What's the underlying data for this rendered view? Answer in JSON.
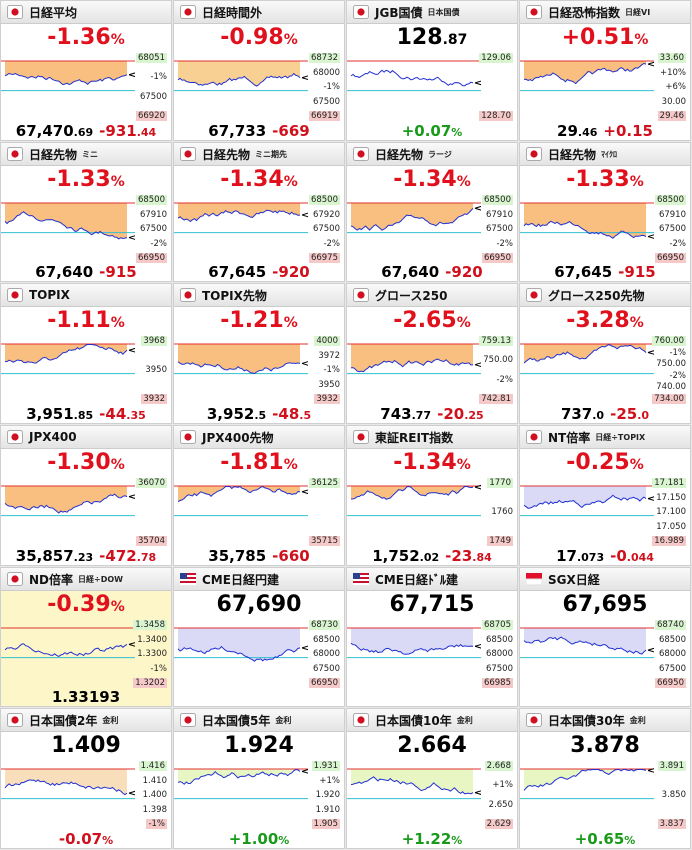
{
  "tiles": [
    {
      "flag": "jp",
      "title": "日経平均",
      "head": [
        "-1.36",
        "%"
      ],
      "head_color": "#e0101c",
      "price": [
        "67,470",
        ".69"
      ],
      "change": [
        "-931",
        ".44"
      ],
      "change_color": "#d0101c",
      "labels": [
        "68051",
        "-1%",
        "67500",
        "66920"
      ],
      "fill": "#f8b46a"
    },
    {
      "flag": "jp",
      "title": "日経時間外",
      "head": [
        "-0.98",
        "%"
      ],
      "head_color": "#e0101c",
      "price": [
        "67,733"
      ],
      "change": [
        "-669"
      ],
      "change_color": "#d0101c",
      "labels": [
        "68732",
        "68000",
        "-1%",
        "67500",
        "66919"
      ],
      "fill": "#f8c880"
    },
    {
      "flag": "jp",
      "title": "JGB国債",
      "sub": "日本国債",
      "head": [
        "128",
        ".87"
      ],
      "head_color": "#000000",
      "change": [
        "+0.07",
        "%"
      ],
      "change_color": "#1a9a1a",
      "labels": [
        "129.06",
        "128.70"
      ],
      "fill": "#ffffff"
    },
    {
      "flag": "jp",
      "title": "日経恐怖指数",
      "sub": "日経VI",
      "head": [
        "+0.51",
        "%"
      ],
      "head_color": "#e0101c",
      "price": [
        "29",
        ".46"
      ],
      "change": [
        "+0.15"
      ],
      "change_color": "#d0101c",
      "labels": [
        "33.60",
        "+10%",
        "+6%",
        "30.00",
        "29.46"
      ],
      "fill": "#f8b46a"
    },
    {
      "flag": "jp",
      "title": "日経先物",
      "sub": "ミニ",
      "head": [
        "-1.33",
        "%"
      ],
      "head_color": "#e0101c",
      "price": [
        "67,640"
      ],
      "change": [
        "-915"
      ],
      "change_color": "#d0101c",
      "labels": [
        "68500",
        "67910",
        "67500",
        "-2%",
        "66950"
      ],
      "fill": "#f8b46a"
    },
    {
      "flag": "jp",
      "title": "日経先物",
      "sub": "ミニ期先",
      "head": [
        "-1.34",
        "%"
      ],
      "head_color": "#e0101c",
      "price": [
        "67,645"
      ],
      "change": [
        "-920"
      ],
      "change_color": "#d0101c",
      "labels": [
        "68500",
        "67920",
        "67500",
        "-2%",
        "66975"
      ],
      "fill": "#f8b46a"
    },
    {
      "flag": "jp",
      "title": "日経先物",
      "sub": "ラージ",
      "head": [
        "-1.34",
        "%"
      ],
      "head_color": "#e0101c",
      "price": [
        "67,640"
      ],
      "change": [
        "-920"
      ],
      "change_color": "#d0101c",
      "labels": [
        "68500",
        "67910",
        "67500",
        "-2%",
        "66950"
      ],
      "fill": "#f8b46a"
    },
    {
      "flag": "jp",
      "title": "日経先物",
      "sub": "ﾏｲｸﾛ",
      "head": [
        "-1.33",
        "%"
      ],
      "head_color": "#e0101c",
      "price": [
        "67,645"
      ],
      "change": [
        "-915"
      ],
      "change_color": "#d0101c",
      "labels": [
        "68500",
        "67910",
        "67500",
        "-2%",
        "66950"
      ],
      "fill": "#f8b46a"
    },
    {
      "flag": "jp",
      "title": "TOPIX",
      "head": [
        "-1.11",
        "%"
      ],
      "head_color": "#e0101c",
      "price": [
        "3,951",
        ".85"
      ],
      "change": [
        "-44",
        ".35"
      ],
      "change_color": "#d0101c",
      "labels": [
        "3968",
        "3950",
        "3932"
      ],
      "fill": "#f8b46a"
    },
    {
      "flag": "jp",
      "title": "TOPIX先物",
      "head": [
        "-1.21",
        "%"
      ],
      "head_color": "#e0101c",
      "price": [
        "3,952",
        ".5"
      ],
      "change": [
        "-48",
        ".5"
      ],
      "change_color": "#d0101c",
      "labels": [
        "4000",
        "3972",
        "-1%",
        "3950",
        "3932"
      ],
      "fill": "#f8b46a"
    },
    {
      "flag": "jp",
      "title": "グロース250",
      "head": [
        "-2.65",
        "%"
      ],
      "head_color": "#e0101c",
      "price": [
        "743",
        ".77"
      ],
      "change": [
        "-20",
        ".25"
      ],
      "change_color": "#d0101c",
      "labels": [
        "759.13",
        "750.00",
        "-2%",
        "742.81"
      ],
      "fill": "#f8b46a"
    },
    {
      "flag": "jp",
      "title": "グロース250先物",
      "head": [
        "-3.28",
        "%"
      ],
      "head_color": "#e0101c",
      "price": [
        "737",
        ".0"
      ],
      "change": [
        "-25",
        ".0"
      ],
      "change_color": "#d0101c",
      "labels": [
        "760.00",
        "-1%",
        "750.00",
        "-2%",
        "740.00",
        "734.00"
      ],
      "fill": "#f8b46a"
    },
    {
      "flag": "jp",
      "title": "JPX400",
      "head": [
        "-1.30",
        "%"
      ],
      "head_color": "#e0101c",
      "price": [
        "35,857",
        ".23"
      ],
      "change": [
        "-472",
        ".78"
      ],
      "change_color": "#d0101c",
      "labels": [
        "36070",
        "35704"
      ],
      "fill": "#f8b46a"
    },
    {
      "flag": "jp",
      "title": "JPX400先物",
      "head": [
        "-1.81",
        "%"
      ],
      "head_color": "#e0101c",
      "price": [
        "35,785"
      ],
      "change": [
        "-660"
      ],
      "change_color": "#d0101c",
      "labels": [
        "36125",
        "35715"
      ],
      "fill": "#f8b46a"
    },
    {
      "flag": "jp",
      "title": "東証REIT指数",
      "head": [
        "-1.34",
        "%"
      ],
      "head_color": "#e0101c",
      "price": [
        "1,752",
        ".02"
      ],
      "change": [
        "-23",
        ".84"
      ],
      "change_color": "#d0101c",
      "labels": [
        "1770",
        "1760",
        "1749"
      ],
      "fill": "#f8b46a"
    },
    {
      "flag": "jp",
      "title": "NT倍率",
      "sub": "日経÷TOPIX",
      "head": [
        "-0.25",
        "%"
      ],
      "head_color": "#e0101c",
      "price": [
        "17",
        ".073"
      ],
      "change": [
        "-0",
        ".044"
      ],
      "change_color": "#d0101c",
      "labels": [
        "17.181",
        "17.150",
        "17.100",
        "17.050",
        "16.989"
      ],
      "fill": "#d4d4f4"
    },
    {
      "flag": "jp",
      "title": "ND倍率",
      "sub": "日経÷DOW",
      "head": [
        "-0.39",
        "%"
      ],
      "head_color": "#e0101c",
      "price": [
        "1.33193"
      ],
      "change_color": "#d0101c",
      "labels": [
        "1.3458",
        "1.3400",
        "1.3300",
        "-1%",
        "1.3202"
      ],
      "fill": "#fdf6c8"
    },
    {
      "flag": "us",
      "title": "CME日経円建",
      "head": [
        "67,690"
      ],
      "head_color": "#000000",
      "labels": [
        "68730",
        "68500",
        "68000",
        "67500",
        "66950"
      ],
      "fill": "#d4d4f4"
    },
    {
      "flag": "us",
      "title": "CME日経ﾄﾞﾙ建",
      "head": [
        "67,715"
      ],
      "head_color": "#000000",
      "labels": [
        "68705",
        "68500",
        "68000",
        "67500",
        "66985"
      ],
      "fill": "#d4d4f4"
    },
    {
      "flag": "sg",
      "title": "SGX日経",
      "head": [
        "67,695"
      ],
      "head_color": "#000000",
      "labels": [
        "68740",
        "68500",
        "68000",
        "67500",
        "66950"
      ],
      "fill": "#d4d4f4"
    },
    {
      "flag": "jp",
      "title": "日本国債2年",
      "sub": "金利",
      "head": [
        "1.409"
      ],
      "head_color": "#000000",
      "change": [
        "-0.07",
        "%"
      ],
      "change_color": "#d0101c",
      "labels": [
        "1.416",
        "1.410",
        "1.400",
        "1.398",
        "-1%"
      ],
      "fill": "#f8d8b0"
    },
    {
      "flag": "jp",
      "title": "日本国債5年",
      "sub": "金利",
      "head": [
        "1.924"
      ],
      "head_color": "#000000",
      "change": [
        "+1.00",
        "%"
      ],
      "change_color": "#1a9a1a",
      "labels": [
        "1.931",
        "+1%",
        "1.920",
        "1.910",
        "1.905"
      ],
      "fill": "#e4f4b8"
    },
    {
      "flag": "jp",
      "title": "日本国債10年",
      "sub": "金利",
      "head": [
        "2.664"
      ],
      "head_color": "#000000",
      "change": [
        "+1.22",
        "%"
      ],
      "change_color": "#1a9a1a",
      "labels": [
        "2.668",
        "+1%",
        "2.650",
        "2.629"
      ],
      "fill": "#e4f4b8"
    },
    {
      "flag": "jp",
      "title": "日本国債30年",
      "sub": "金利",
      "head": [
        "3.878"
      ],
      "head_color": "#000000",
      "change": [
        "+0.65",
        "%"
      ],
      "change_color": "#1a9a1a",
      "labels": [
        "3.891",
        "3.850",
        "3.837"
      ],
      "fill": "#e4f4b8"
    }
  ]
}
